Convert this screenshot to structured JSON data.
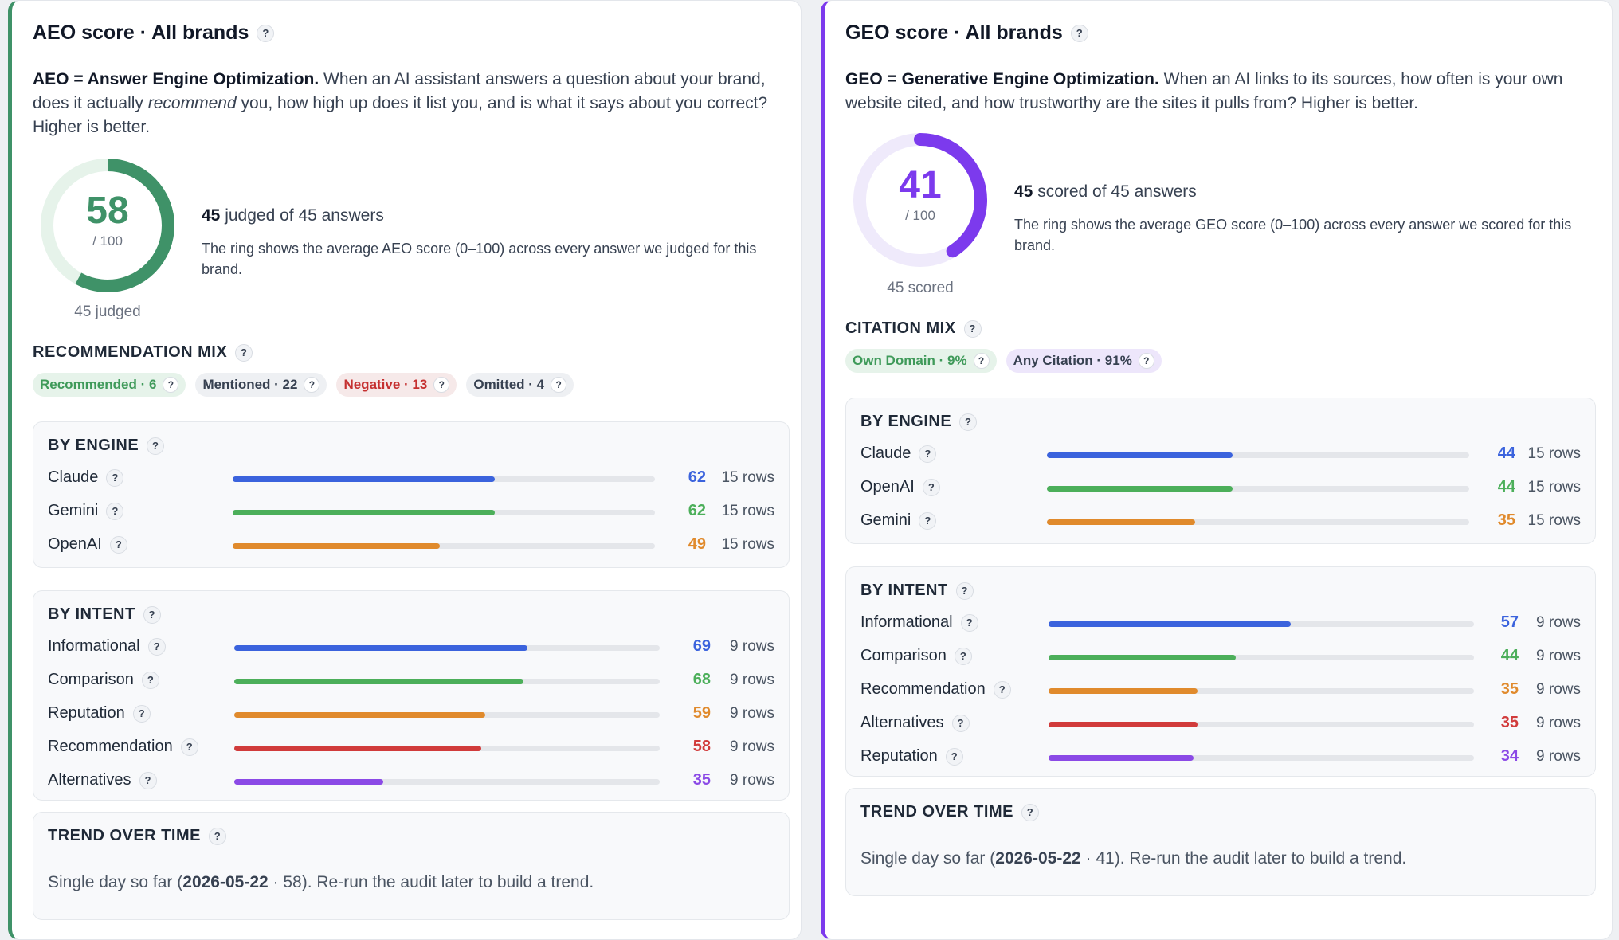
{
  "aeo": {
    "title": "AEO score · All brands",
    "desc_bold": "AEO = Answer Engine Optimization.",
    "desc_1": " When an AI assistant answers a question about your brand, does it actually ",
    "desc_italic": "recommend",
    "desc_2": " you, how high up does it list you, and is what it says about you correct? Higher is better.",
    "score": 58,
    "score_display": "58",
    "score_max": "/ 100",
    "ring_caption": "45 judged",
    "summary_count": "45",
    "summary_text": " judged of 45 answers",
    "summary_expl": "The ring shows the average AEO score (0–100) across every answer we judged for this brand.",
    "mix_title": "RECOMMENDATION MIX",
    "chips": [
      {
        "label": "Recommended · 6",
        "tone": "green"
      },
      {
        "label": "Mentioned · 22",
        "tone": "gray"
      },
      {
        "label": "Negative · 13",
        "tone": "red"
      },
      {
        "label": "Omitted · 4",
        "tone": "gray"
      }
    ],
    "by_engine": {
      "title": "BY ENGINE",
      "rows": [
        {
          "label": "Claude",
          "value": 62,
          "value_text": "62",
          "rows_text": "15 rows",
          "color": "#3b63dd"
        },
        {
          "label": "Gemini",
          "value": 62,
          "value_text": "62",
          "rows_text": "15 rows",
          "color": "#4caf5a"
        },
        {
          "label": "OpenAI",
          "value": 49,
          "value_text": "49",
          "rows_text": "15 rows",
          "color": "#e08a2c"
        }
      ]
    },
    "by_intent": {
      "title": "BY INTENT",
      "rows": [
        {
          "label": "Informational",
          "value": 69,
          "value_text": "69",
          "rows_text": "9 rows",
          "color": "#3b63dd"
        },
        {
          "label": "Comparison",
          "value": 68,
          "value_text": "68",
          "rows_text": "9 rows",
          "color": "#4caf5a"
        },
        {
          "label": "Reputation",
          "value": 59,
          "value_text": "59",
          "rows_text": "9 rows",
          "color": "#e08a2c"
        },
        {
          "label": "Recommendation",
          "value": 58,
          "value_text": "58",
          "rows_text": "9 rows",
          "color": "#d13b3b"
        },
        {
          "label": "Alternatives",
          "value": 35,
          "value_text": "35",
          "rows_text": "9 rows",
          "color": "#8b4ae6"
        }
      ]
    },
    "trend": {
      "title": "TREND OVER TIME",
      "prefix": "Single day so far (",
      "date": "2026-05-22",
      "suffix": " · 58). Re-run the audit later to build a trend."
    }
  },
  "geo": {
    "title": "GEO score · All brands",
    "desc_bold": "GEO = Generative Engine Optimization.",
    "desc_1": " When an AI links to its sources, how often is your own website cited, and how trustworthy are the sites it pulls from? Higher is better.",
    "score": 41,
    "score_display": "41",
    "score_max": "/ 100",
    "ring_caption": "45 scored",
    "summary_count": "45",
    "summary_text": " scored of 45 answers",
    "summary_expl": "The ring shows the average GEO score (0–100) across every answer we scored for this brand.",
    "mix_title": "CITATION MIX",
    "chips": [
      {
        "label": "Own Domain · 9%",
        "tone": "green"
      },
      {
        "label": "Any Citation · 91%",
        "tone": "violet"
      }
    ],
    "by_engine": {
      "title": "BY ENGINE",
      "rows": [
        {
          "label": "Claude",
          "value": 44,
          "value_text": "44",
          "rows_text": "15 rows",
          "color": "#3b63dd"
        },
        {
          "label": "OpenAI",
          "value": 44,
          "value_text": "44",
          "rows_text": "15 rows",
          "color": "#4caf5a"
        },
        {
          "label": "Gemini",
          "value": 35,
          "value_text": "35",
          "rows_text": "15 rows",
          "color": "#e08a2c"
        }
      ]
    },
    "by_intent": {
      "title": "BY INTENT",
      "rows": [
        {
          "label": "Informational",
          "value": 57,
          "value_text": "57",
          "rows_text": "9 rows",
          "color": "#3b63dd"
        },
        {
          "label": "Comparison",
          "value": 44,
          "value_text": "44",
          "rows_text": "9 rows",
          "color": "#4caf5a"
        },
        {
          "label": "Recommendation",
          "value": 35,
          "value_text": "35",
          "rows_text": "9 rows",
          "color": "#e08a2c"
        },
        {
          "label": "Alternatives",
          "value": 35,
          "value_text": "35",
          "rows_text": "9 rows",
          "color": "#d13b3b"
        },
        {
          "label": "Reputation",
          "value": 34,
          "value_text": "34",
          "rows_text": "9 rows",
          "color": "#8b4ae6"
        }
      ]
    },
    "trend": {
      "title": "TREND OVER TIME",
      "prefix": "Single day so far (",
      "date": "2026-05-22",
      "suffix": " · 41). Re-run the audit later to build a trend."
    }
  },
  "colors": {
    "aeo_accent": "#3f9268",
    "aeo_ring_track": "#e6f3ea",
    "geo_accent": "#7c3aed",
    "geo_ring_track": "#efeafb"
  }
}
